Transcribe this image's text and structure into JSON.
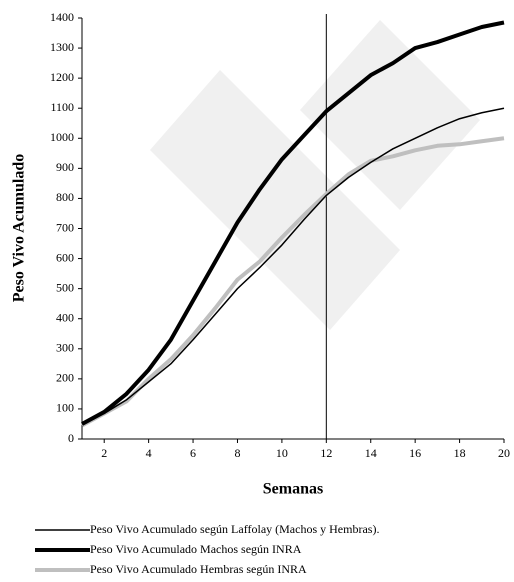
{
  "chart_data": {
    "type": "line",
    "x_label": "Semanas",
    "y_label": "Peso Vivo Acumulado",
    "x": [
      1,
      2,
      3,
      4,
      5,
      6,
      7,
      8,
      9,
      10,
      11,
      12,
      13,
      14,
      15,
      16,
      17,
      18,
      19,
      20
    ],
    "series": [
      {
        "name": "Peso Vivo Acumulado según Laffolay (Machos y Hembras).",
        "color": "#000000",
        "width": 1.5,
        "values": [
          50,
          85,
          130,
          190,
          250,
          330,
          415,
          500,
          570,
          645,
          730,
          810,
          870,
          920,
          965,
          1000,
          1035,
          1065,
          1085,
          1100
        ]
      },
      {
        "name": "Peso Vivo Acumulado Machos según INRA",
        "color": "#000000",
        "width": 4,
        "values": [
          50,
          90,
          150,
          230,
          330,
          460,
          590,
          720,
          830,
          930,
          1010,
          1090,
          1150,
          1210,
          1250,
          1300,
          1320,
          1345,
          1370,
          1385
        ]
      },
      {
        "name": "Peso Vivo Acumulado Hembras según INRA",
        "color": "#bfbfbf",
        "width": 4,
        "values": [
          45,
          85,
          125,
          200,
          265,
          345,
          435,
          530,
          590,
          670,
          745,
          815,
          880,
          925,
          940,
          960,
          975,
          980,
          990,
          1000
        ]
      }
    ],
    "xlim": [
      1,
      20
    ],
    "xticks": [
      2,
      4,
      6,
      8,
      10,
      12,
      14,
      16,
      18,
      20
    ],
    "ylim": [
      0,
      1400
    ],
    "yticks": [
      0,
      100,
      200,
      300,
      400,
      500,
      600,
      700,
      800,
      900,
      1000,
      1100,
      1200,
      1300,
      1400
    ],
    "vline": 12
  }
}
